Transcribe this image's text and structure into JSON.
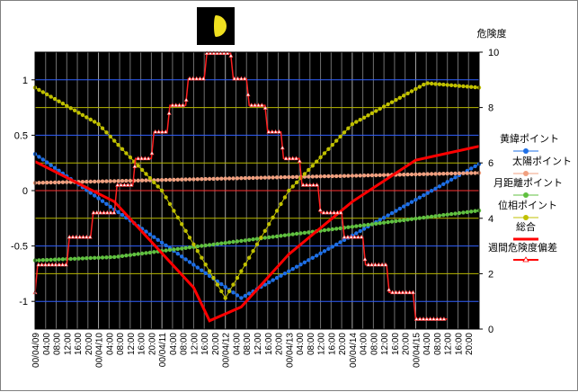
{
  "chart_data": {
    "type": "line",
    "title": "",
    "y2label": "危険度",
    "ylim": [
      -1.25,
      1.25
    ],
    "y2lim": [
      0,
      10
    ],
    "yticks": [
      "1",
      "0.5",
      "0",
      "-0.5",
      "-1"
    ],
    "y2ticks": [
      "10",
      "8",
      "6",
      "4",
      "2",
      "0"
    ],
    "x_tick_labels": [
      "00/04/09",
      "04:00",
      "08:00",
      "12:00",
      "16:00",
      "20:00",
      "00/04/10",
      "04:00",
      "08:00",
      "12:00",
      "16:00",
      "20:00",
      "00/04/11",
      "04:00",
      "08:00",
      "12:00",
      "16:00",
      "20:00",
      "00/04/12",
      "04:00",
      "08:00",
      "12:00",
      "16:00",
      "20:00",
      "00/04/13",
      "04:00",
      "08:00",
      "12:00",
      "16:00",
      "20:00",
      "00/04/14",
      "04:00",
      "08:00",
      "12:00",
      "16:00",
      "20:00",
      "00/04/15",
      "04:00",
      "08:00",
      "12:00",
      "16:00",
      "20:00"
    ],
    "x_range_hours": [
      0,
      168
    ],
    "legend": [
      {
        "label": "黄緯ポイント",
        "color": "#1e6fe6"
      },
      {
        "label": "太陽ポイント",
        "color": "#f0a080"
      },
      {
        "label": "月距離ポイント",
        "color": "#60c040"
      },
      {
        "label": "位相ポイント",
        "color": "#c0c000"
      },
      {
        "label": "総合",
        "color": "#ff0000"
      },
      {
        "label": "週間危険度偏差",
        "color": "#ff0000"
      }
    ],
    "series": [
      {
        "name": "黄緯ポイント",
        "axis": "left",
        "points": [
          [
            0,
            0.33
          ],
          [
            78,
            -0.97
          ],
          [
            168,
            0.24
          ]
        ]
      },
      {
        "name": "太陽ポイント",
        "axis": "left",
        "points": [
          [
            0,
            0.07
          ],
          [
            168,
            0.16
          ]
        ]
      },
      {
        "name": "月距離ポイント",
        "axis": "left",
        "points": [
          [
            0,
            -0.63
          ],
          [
            30,
            -0.6
          ],
          [
            168,
            -0.18
          ]
        ]
      },
      {
        "name": "位相ポイント",
        "axis": "left",
        "points": [
          [
            0,
            0.93
          ],
          [
            24,
            0.6
          ],
          [
            48,
            0.0
          ],
          [
            72,
            -0.97
          ],
          [
            96,
            0.0
          ],
          [
            120,
            0.6
          ],
          [
            148,
            0.97
          ],
          [
            168,
            0.93
          ]
        ]
      },
      {
        "name": "総合",
        "axis": "right",
        "points": [
          [
            0,
            6.05
          ],
          [
            30,
            4.6
          ],
          [
            60,
            1.5
          ],
          [
            66,
            0.3
          ],
          [
            78,
            0.8
          ],
          [
            96,
            2.7
          ],
          [
            120,
            4.6
          ],
          [
            144,
            6.1
          ],
          [
            168,
            6.6
          ]
        ]
      },
      {
        "name": "週間危険度偏差",
        "axis": "left",
        "points": [
          [
            0,
            -0.92
          ],
          [
            1,
            -0.67
          ],
          [
            12,
            -0.67
          ],
          [
            13,
            -0.42
          ],
          [
            21,
            -0.42
          ],
          [
            22,
            -0.2
          ],
          [
            30,
            -0.2
          ],
          [
            31,
            0.05
          ],
          [
            37,
            0.05
          ],
          [
            38,
            0.29
          ],
          [
            44,
            0.29
          ],
          [
            45,
            0.53
          ],
          [
            50,
            0.53
          ],
          [
            51,
            0.77
          ],
          [
            57,
            0.77
          ],
          [
            58,
            1.01
          ],
          [
            64,
            1.01
          ],
          [
            65,
            1.24
          ],
          [
            74,
            1.24
          ],
          [
            75,
            1.01
          ],
          [
            80,
            1.01
          ],
          [
            81,
            0.77
          ],
          [
            87,
            0.77
          ],
          [
            88,
            0.53
          ],
          [
            93,
            0.53
          ],
          [
            94,
            0.29
          ],
          [
            100,
            0.29
          ],
          [
            101,
            0.05
          ],
          [
            107,
            0.05
          ],
          [
            108,
            -0.2
          ],
          [
            116,
            -0.2
          ],
          [
            117,
            -0.42
          ],
          [
            124,
            -0.42
          ],
          [
            125,
            -0.67
          ],
          [
            133,
            -0.67
          ],
          [
            134,
            -0.92
          ],
          [
            143,
            -0.92
          ],
          [
            144,
            -1.16
          ],
          [
            156,
            -1.16
          ]
        ]
      }
    ]
  }
}
